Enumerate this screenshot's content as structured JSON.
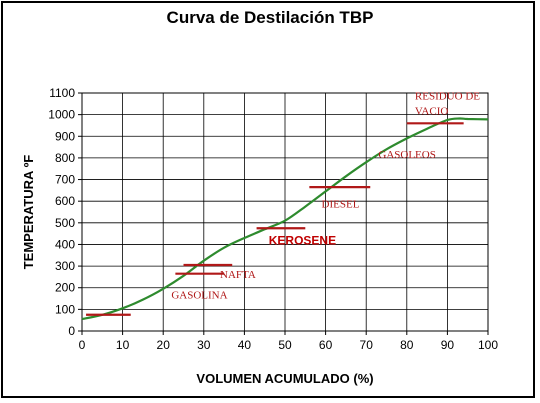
{
  "colors": {
    "curve": "#2e8b2e",
    "cut_lines": "#b01818",
    "label_text": "#b01818",
    "grid": "#000000",
    "plot_bg": "#ffffff"
  },
  "chart_data": {
    "type": "line",
    "title": "Curva de Destilación TBP",
    "xlabel": "VOLUMEN ACUMULADO (%)",
    "ylabel": "TEMPERATURA ºF",
    "xlim": [
      0,
      100
    ],
    "ylim": [
      0,
      1100
    ],
    "xticks": [
      "0",
      "10",
      "20",
      "30",
      "40",
      "50",
      "60",
      "70",
      "80",
      "90",
      "100"
    ],
    "yticks": [
      "0",
      "100",
      "200",
      "300",
      "400",
      "500",
      "600",
      "700",
      "800",
      "900",
      "1000",
      "1100"
    ],
    "grid": true,
    "series": [
      {
        "x": [
          0,
          5,
          10,
          15,
          20,
          25,
          30,
          35,
          40,
          45,
          50,
          55,
          60,
          65,
          70,
          75,
          80,
          85,
          90,
          93,
          95,
          100
        ],
        "y": [
          55,
          75,
          105,
          145,
          195,
          255,
          325,
          385,
          430,
          470,
          510,
          575,
          645,
          715,
          780,
          840,
          890,
          935,
          975,
          982,
          980,
          978
        ]
      }
    ],
    "cuts": [
      {
        "label": "GASOLINA",
        "x_start": 1,
        "x_end": 12,
        "y": 75
      },
      {
        "label": "NAFTA",
        "x_start": 23,
        "x_end": 35,
        "y": 265
      },
      {
        "label": "",
        "x_start": 25,
        "x_end": 37,
        "y": 305
      },
      {
        "label": "KEROSENE",
        "x_start": 43,
        "x_end": 55,
        "y": 475
      },
      {
        "label": "DIESEL",
        "x_start": 56,
        "x_end": 71,
        "y": 665
      },
      {
        "label": "GASOLEOS",
        "x_start": 80,
        "x_end": 94,
        "y": 960
      },
      {
        "label": "RESIDUO DE",
        "x_start": 0,
        "x_end": 0,
        "y": 0
      },
      {
        "label": "VACIO",
        "x_start": 0,
        "x_end": 0,
        "y": 0
      }
    ],
    "annotations": [
      {
        "text": "GASOLINA",
        "x": 22,
        "y": 150,
        "style": "serif"
      },
      {
        "text": "NAFTA",
        "x": 34,
        "y": 245,
        "style": "serif"
      },
      {
        "text": "KEROSENE",
        "x": 46,
        "y": 400,
        "style": "bold"
      },
      {
        "text": "DIESEL",
        "x": 59,
        "y": 570,
        "style": "serif"
      },
      {
        "text": "GASOLEOS",
        "x": 73,
        "y": 800,
        "style": "serif"
      },
      {
        "text": "RESIDUO DE",
        "x": 82,
        "y": 1070,
        "style": "serif"
      },
      {
        "text": "VACIO",
        "x": 82,
        "y": 1000,
        "style": "serif"
      }
    ]
  }
}
